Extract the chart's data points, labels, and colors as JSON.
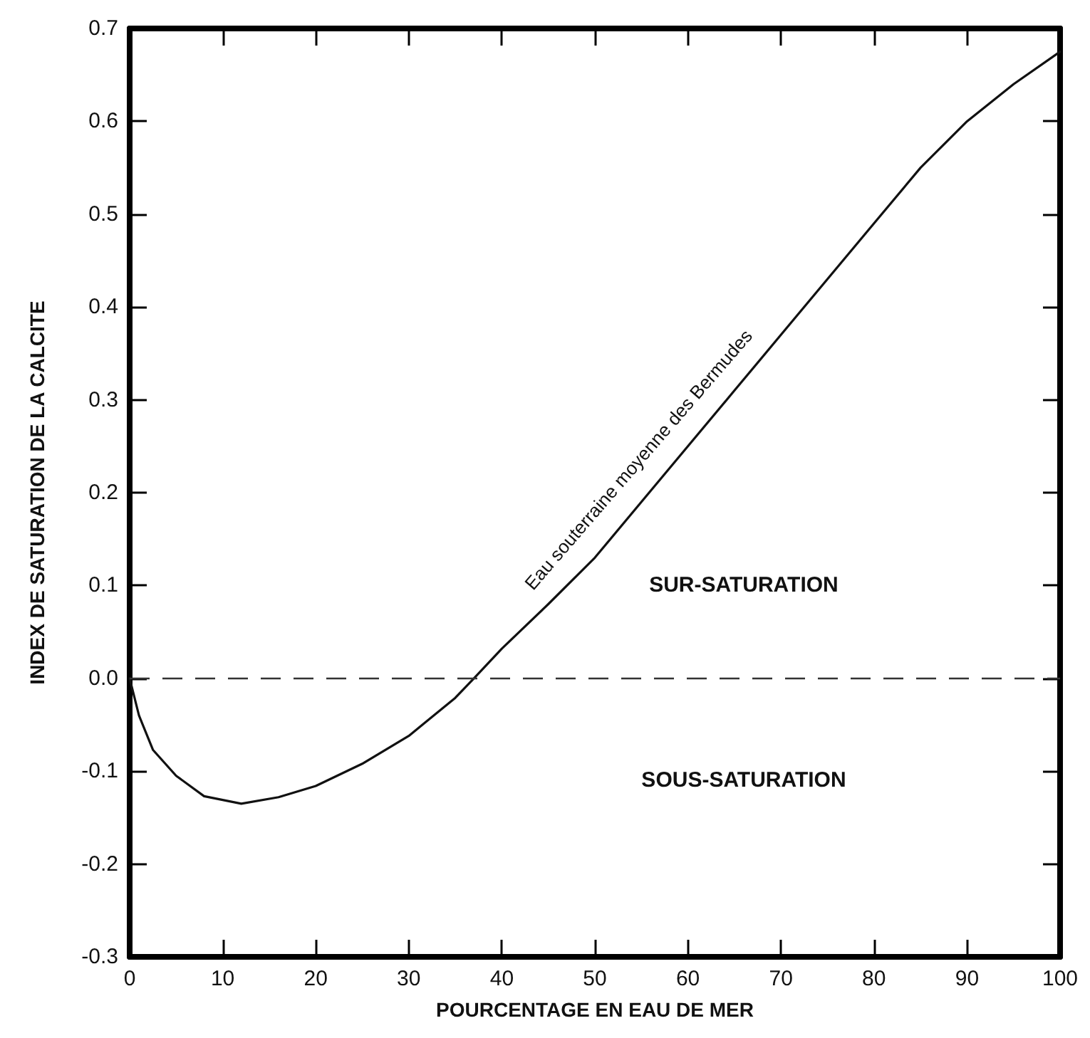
{
  "chart_data": {
    "type": "line",
    "xlabel": "POURCENTAGE EN EAU DE MER",
    "ylabel": "INDEX DE SATURATION DE LA CALCITE",
    "xlim": [
      0,
      100
    ],
    "ylim": [
      -0.3,
      0.7
    ],
    "xticks": [
      0,
      10,
      20,
      30,
      40,
      50,
      60,
      70,
      80,
      90,
      100
    ],
    "yticks": [
      {
        "value": -0.3,
        "label": "-0.3"
      },
      {
        "value": -0.2,
        "label": "-0.2"
      },
      {
        "value": -0.1,
        "label": "-0.1"
      },
      {
        "value": 0,
        "label": "0.0"
      },
      0.1,
      0.2,
      0.3,
      0.4,
      0.5,
      0.6,
      0.7
    ],
    "grid": false,
    "legend": false,
    "marker": "none",
    "line_style": "solid",
    "series": [
      {
        "name": "Eau souterraine moyenne des Bermudes",
        "color": "#111111",
        "x": [
          0,
          1,
          2.5,
          5,
          8,
          12,
          16,
          20,
          25,
          30,
          35,
          37,
          40,
          45,
          50,
          55,
          60,
          65,
          70,
          75,
          80,
          85,
          90,
          95,
          100
        ],
        "values": [
          0,
          -0.04,
          -0.077,
          -0.105,
          -0.127,
          -0.135,
          -0.128,
          -0.116,
          -0.092,
          -0.062,
          -0.021,
          0,
          0.032,
          0.08,
          0.13,
          0.19,
          0.25,
          0.31,
          0.37,
          0.43,
          0.49,
          0.55,
          0.6,
          0.64,
          0.675
        ]
      }
    ],
    "ref_lines": [
      {
        "axis": "y",
        "value": 0,
        "color": "#333333",
        "line_style": "dashed"
      }
    ],
    "annotations": [
      "SUR-SATURATION",
      "SOUS-SATURATION"
    ]
  }
}
